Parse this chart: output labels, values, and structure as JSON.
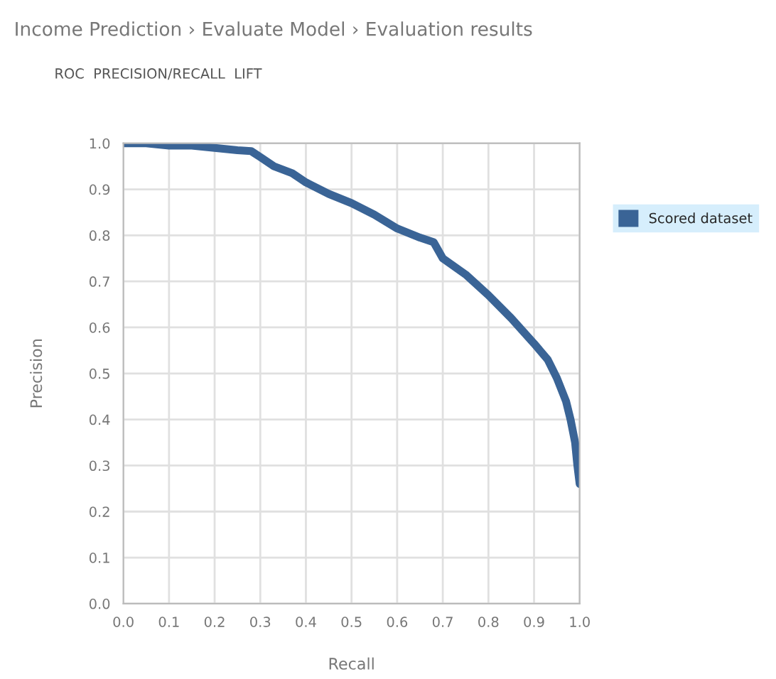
{
  "chart_data": {
    "type": "line",
    "title": "Income Prediction › Evaluate Model › Evaluation results",
    "subtitle": "ROC  PRECISION/RECALL  LIFT",
    "xlabel": "Recall",
    "ylabel": "Precision",
    "x": [
      0,
      0.05,
      0.1,
      0.15,
      0.2,
      0.25,
      0.28,
      0.3,
      0.33,
      0.37,
      0.4,
      0.45,
      0.5,
      0.55,
      0.6,
      0.65,
      0.68,
      0.7,
      0.75,
      0.8,
      0.85,
      0.9,
      0.93,
      0.95,
      0.97,
      0.98,
      0.99,
      0.995,
      1.0
    ],
    "series": [
      {
        "name": "Scored dataset",
        "color": "#3a6496",
        "values": [
          1.0,
          1.0,
          0.995,
          0.995,
          0.99,
          0.985,
          0.983,
          0.97,
          0.95,
          0.935,
          0.915,
          0.89,
          0.87,
          0.845,
          0.815,
          0.795,
          0.785,
          0.75,
          0.715,
          0.67,
          0.62,
          0.565,
          0.53,
          0.49,
          0.44,
          0.4,
          0.35,
          0.3,
          0.26
        ]
      }
    ],
    "xlim": [
      0,
      1
    ],
    "ylim": [
      0,
      1
    ],
    "xticks": [
      {
        "value": 0,
        "label": "0.0"
      },
      0.1,
      0.2,
      0.3,
      0.4,
      0.5,
      0.6,
      0.7,
      0.8,
      0.9,
      {
        "value": 1,
        "label": "1.0"
      }
    ],
    "yticks": [
      {
        "value": 0,
        "label": "0.0"
      },
      0.1,
      0.2,
      0.3,
      0.4,
      0.5,
      0.6,
      0.7,
      0.8,
      0.9,
      {
        "value": 1,
        "label": "1.0"
      }
    ],
    "grid": true,
    "legend": "top right",
    "marker": "none",
    "line_style": "solid"
  }
}
